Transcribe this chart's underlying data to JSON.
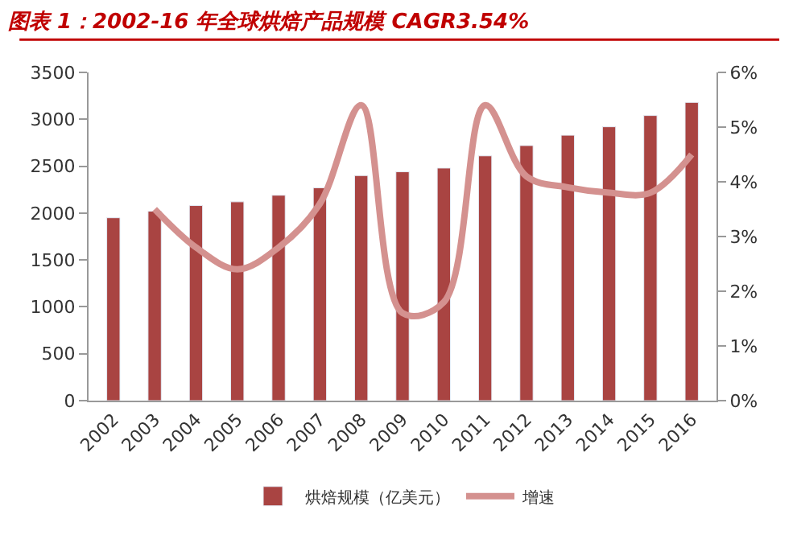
{
  "chart_data": {
    "type": "bar",
    "title": "图表 1：2002-16 年全球烘焙产品规模 CAGR3.54%",
    "categories": [
      "2002",
      "2003",
      "2004",
      "2005",
      "2006",
      "2007",
      "2008",
      "2009",
      "2010",
      "2011",
      "2012",
      "2013",
      "2014",
      "2015",
      "2016"
    ],
    "series": [
      {
        "name": "烘焙规模（亿美元）",
        "color": "#a94442",
        "values": [
          1950,
          2020,
          2080,
          2120,
          2190,
          2270,
          2400,
          2440,
          2480,
          2610,
          2720,
          2830,
          2920,
          3040,
          3180
        ]
      },
      {
        "name": "增速",
        "type": "line",
        "axis": "y2",
        "color": "#d4918f",
        "values": [
          null,
          3.5,
          2.8,
          2.4,
          2.8,
          3.6,
          5.4,
          1.6,
          1.8,
          5.4,
          4.1,
          3.9,
          3.8,
          3.8,
          4.5
        ]
      }
    ],
    "ylim": [
      0,
      3500
    ],
    "yticks": [
      0,
      500,
      1000,
      1500,
      2000,
      2500,
      3000,
      3500
    ],
    "y2lim": [
      0,
      6
    ],
    "y2ticks": [
      {
        "value": 0,
        "label": "0%"
      },
      {
        "value": 1,
        "label": "1%"
      },
      {
        "value": 2,
        "label": "2%"
      },
      {
        "value": 3,
        "label": "3%"
      },
      {
        "value": 4,
        "label": "4%"
      },
      {
        "value": 5,
        "label": "5%"
      },
      {
        "value": 6,
        "label": "6%"
      }
    ],
    "grid": false,
    "legend": "bottom"
  }
}
